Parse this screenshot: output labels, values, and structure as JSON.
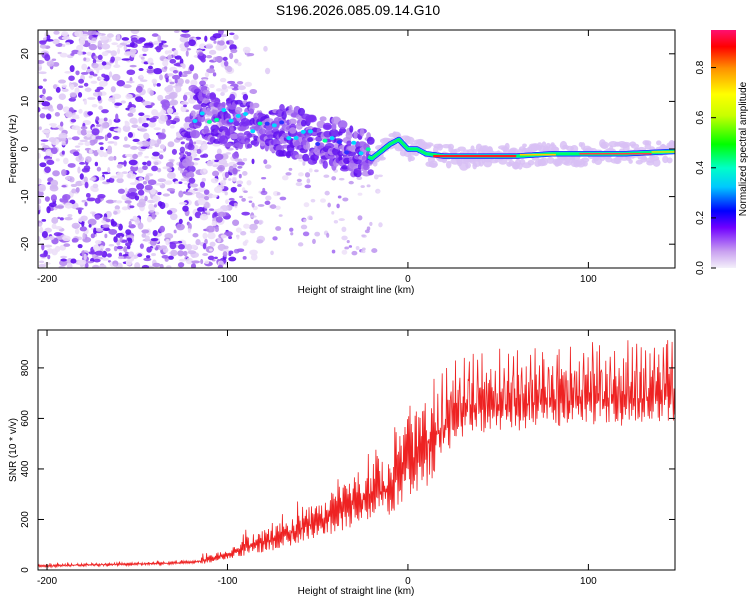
{
  "title": "S196.2026.085.09.14.G10",
  "chart_data": [
    {
      "type": "heatmap",
      "title": "S196.2026.085.09.14.G10",
      "xlabel": "Height of straight line (km)",
      "ylabel": "Frequency (Hz)",
      "xlim": [
        -205,
        148
      ],
      "ylim": [
        -25,
        25
      ],
      "xticks": [
        -200,
        -100,
        0,
        100
      ],
      "yticks": [
        -20,
        -10,
        0,
        10,
        20
      ],
      "ridge": {
        "x": [
          -120,
          -100,
          -80,
          -60,
          -40,
          -25,
          -20,
          -10,
          -5,
          0,
          5,
          10,
          20,
          40,
          60,
          80,
          100,
          120,
          148
        ],
        "frequency": [
          8,
          6,
          5,
          3,
          1,
          -1,
          -2,
          1,
          2,
          0,
          0,
          -1,
          -1.5,
          -1.5,
          -1.5,
          -1,
          -1,
          -1,
          -0.5
        ]
      },
      "colorbar": {
        "label": "Normalized spectral amplitude",
        "range": [
          0,
          0.95
        ],
        "ticks": [
          0.0,
          0.2,
          0.4,
          0.6,
          0.8
        ],
        "tick_labels": [
          "0.0",
          "0.2",
          "0.4",
          "0.6",
          "0.8"
        ]
      }
    },
    {
      "type": "line",
      "xlabel": "Height of straight line (km)",
      "ylabel": "SNR (10 * v/v)",
      "xlim": [
        -205,
        148
      ],
      "ylim": [
        0,
        950
      ],
      "xticks": [
        -200,
        -100,
        0,
        100
      ],
      "yticks": [
        0,
        200,
        400,
        600,
        800
      ],
      "series": [
        {
          "name": "SNR",
          "color": "#ee2222",
          "x": [
            -205,
            -180,
            -160,
            -140,
            -120,
            -110,
            -100,
            -90,
            -80,
            -70,
            -60,
            -50,
            -40,
            -30,
            -20,
            -10,
            0,
            10,
            20,
            30,
            40,
            60,
            80,
            100,
            120,
            148
          ],
          "y": [
            15,
            20,
            22,
            25,
            30,
            40,
            60,
            90,
            110,
            130,
            160,
            190,
            230,
            260,
            300,
            320,
            420,
            500,
            560,
            620,
            640,
            650,
            660,
            670,
            670,
            690
          ]
        }
      ]
    }
  ],
  "colors": {
    "snr_line": "#ee2222",
    "axis": "#000000"
  }
}
